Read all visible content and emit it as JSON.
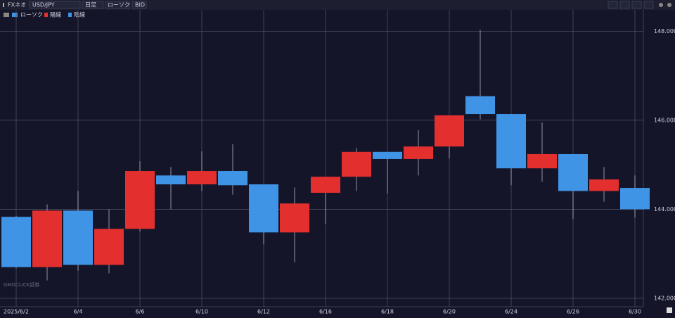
{
  "toolbar": {
    "app": "FXネオ",
    "pair": "USD/JPY",
    "period": "日足",
    "style": "ローソク",
    "price": "BID"
  },
  "chart_data": {
    "type": "candlestick",
    "legend": {
      "title": "ローソク"
    },
    "watermark": "GMOCLICK証券",
    "categories": [
      "2025/6/2",
      null,
      "6/4",
      null,
      "6/6",
      null,
      "6/10",
      null,
      "6/12",
      null,
      "6/16",
      null,
      "6/18",
      null,
      "6/20",
      null,
      "6/24",
      null,
      "6/26",
      null,
      "6/30"
    ],
    "series": [
      {
        "name": "陽線",
        "color": "#e3302f"
      },
      {
        "name": "陰線",
        "color": "#3f94e6"
      }
    ],
    "open": [
      143.83,
      142.7,
      143.97,
      142.75,
      143.56,
      144.76,
      144.56,
      144.86,
      144.56,
      143.48,
      144.37,
      144.73,
      145.29,
      145.13,
      145.41,
      146.54,
      146.14,
      144.92,
      145.24,
      144.41,
      144.48
    ],
    "high": [
      143.85,
      144.11,
      144.41,
      144.0,
      145.08,
      144.95,
      145.3,
      145.46,
      144.56,
      144.49,
      144.73,
      145.38,
      145.29,
      145.78,
      146.11,
      148.03,
      146.14,
      145.95,
      145.24,
      144.95,
      144.76
    ],
    "low": [
      142.68,
      142.4,
      142.62,
      142.56,
      143.5,
      144.0,
      144.41,
      144.33,
      143.21,
      142.81,
      143.67,
      144.41,
      144.35,
      144.76,
      145.14,
      146.02,
      144.54,
      144.62,
      143.78,
      144.17,
      143.81
    ],
    "close": [
      142.7,
      143.97,
      142.75,
      143.56,
      144.86,
      144.56,
      144.86,
      144.54,
      143.48,
      144.13,
      144.73,
      145.29,
      145.13,
      145.41,
      146.11,
      146.14,
      144.92,
      145.24,
      144.41,
      144.67,
      144.0
    ],
    "ylim": [
      141.81,
      148.48
    ],
    "yticks": [
      {
        "value": 142,
        "label": "142.000"
      },
      {
        "value": 144,
        "label": "144.000"
      },
      {
        "value": 146,
        "label": "146.000"
      },
      {
        "value": 148,
        "label": "148.000"
      }
    ],
    "grid": true
  }
}
